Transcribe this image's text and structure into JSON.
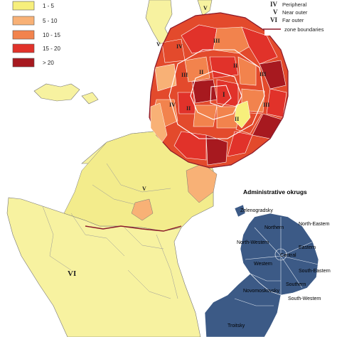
{
  "legend": {
    "items": [
      {
        "label": "1 - 5",
        "color": "#f7ef7c"
      },
      {
        "label": "5 - 10",
        "color": "#f8b176"
      },
      {
        "label": "10 - 15",
        "color": "#f2834d"
      },
      {
        "label": "15 - 20",
        "color": "#e1322a"
      },
      {
        "label": "> 20",
        "color": "#a7191f"
      }
    ]
  },
  "zones_legend": {
    "items": [
      {
        "num": "IV",
        "label": "Peripheral"
      },
      {
        "num": "V",
        "label": "Near outer"
      },
      {
        "num": "VI",
        "label": "Far outer"
      }
    ],
    "boundary_label": "zone boundaries",
    "boundary_color": "#8b1a2a"
  },
  "map_zone_labels": [
    "I",
    "II",
    "III",
    "IV",
    "V",
    "VI"
  ],
  "inset": {
    "title": "Administrative okrugs",
    "color": "#3c5a86",
    "okrugs": [
      "Zelenogradsky",
      "Northern",
      "North-Eastern",
      "North-Western",
      "Eastern",
      "Central",
      "Western",
      "South-Eastern",
      "Novomoskovsky",
      "Southern",
      "South-Western",
      "Troitsky"
    ]
  }
}
